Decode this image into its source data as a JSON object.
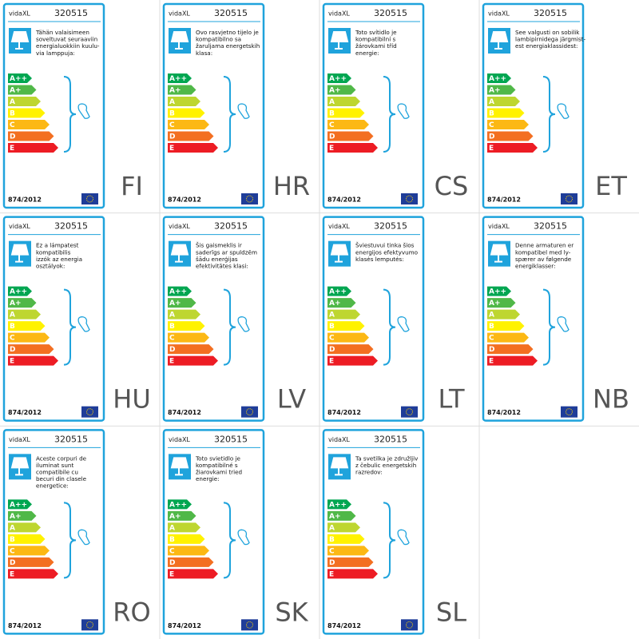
{
  "brand": "vidaXL",
  "product_code": "320515",
  "regulation": "874/2012",
  "energy_classes": [
    "A++",
    "A+",
    "A",
    "B",
    "C",
    "D",
    "E"
  ],
  "labels": [
    {
      "language": "FI",
      "text": [
        "Tähän valaisimeen",
        "soveltuvat seuraaviin",
        "energialuokkiin kuulu-",
        "via lamppuja:"
      ]
    },
    {
      "language": "HR",
      "text": [
        "Ovo rasvjetno tijelo je",
        "kompatibilno sa",
        "žaruljama energetskih",
        "klasa:"
      ]
    },
    {
      "language": "CS",
      "text": [
        "Toto svítidlo je",
        "kompatibilní s",
        "žárovkami tříd",
        "energie:"
      ]
    },
    {
      "language": "ET",
      "text": [
        "See valgusti on sobilik",
        "lambipirnidega järgmist-",
        "est energiaklassidest:"
      ]
    },
    {
      "language": "HU",
      "text": [
        "Ez a lámpatest",
        "kompatibilis",
        "izzók az energia",
        "osztályok:"
      ]
    },
    {
      "language": "LV",
      "text": [
        "Šis gaismeklis ir",
        "saderīgs ar spuldzēm",
        "šādu enerģijas",
        "efektivitātes klasi:"
      ]
    },
    {
      "language": "LT",
      "text": [
        "Šviestuvui tinka šios",
        "energijos efektyvumo",
        "klasės lemputės:"
      ]
    },
    {
      "language": "NB",
      "text": [
        "Denne armaturen er",
        "kompatibel med ly-",
        "spærer av følgende",
        "energiklasser:"
      ]
    },
    {
      "language": "RO",
      "text": [
        "Aceste corpuri de",
        "iluminat sunt",
        "compatibile cu",
        "becuri din clasele",
        "energetice:"
      ]
    },
    {
      "language": "SK",
      "text": [
        "Toto svietidlo je",
        "kompatibilné s",
        "žiarovkami tried",
        "energie:"
      ]
    },
    {
      "language": "SL",
      "text": [
        "Ta svetilka je združljiv",
        "z čebulic energetskih",
        "razredov:"
      ]
    }
  ]
}
